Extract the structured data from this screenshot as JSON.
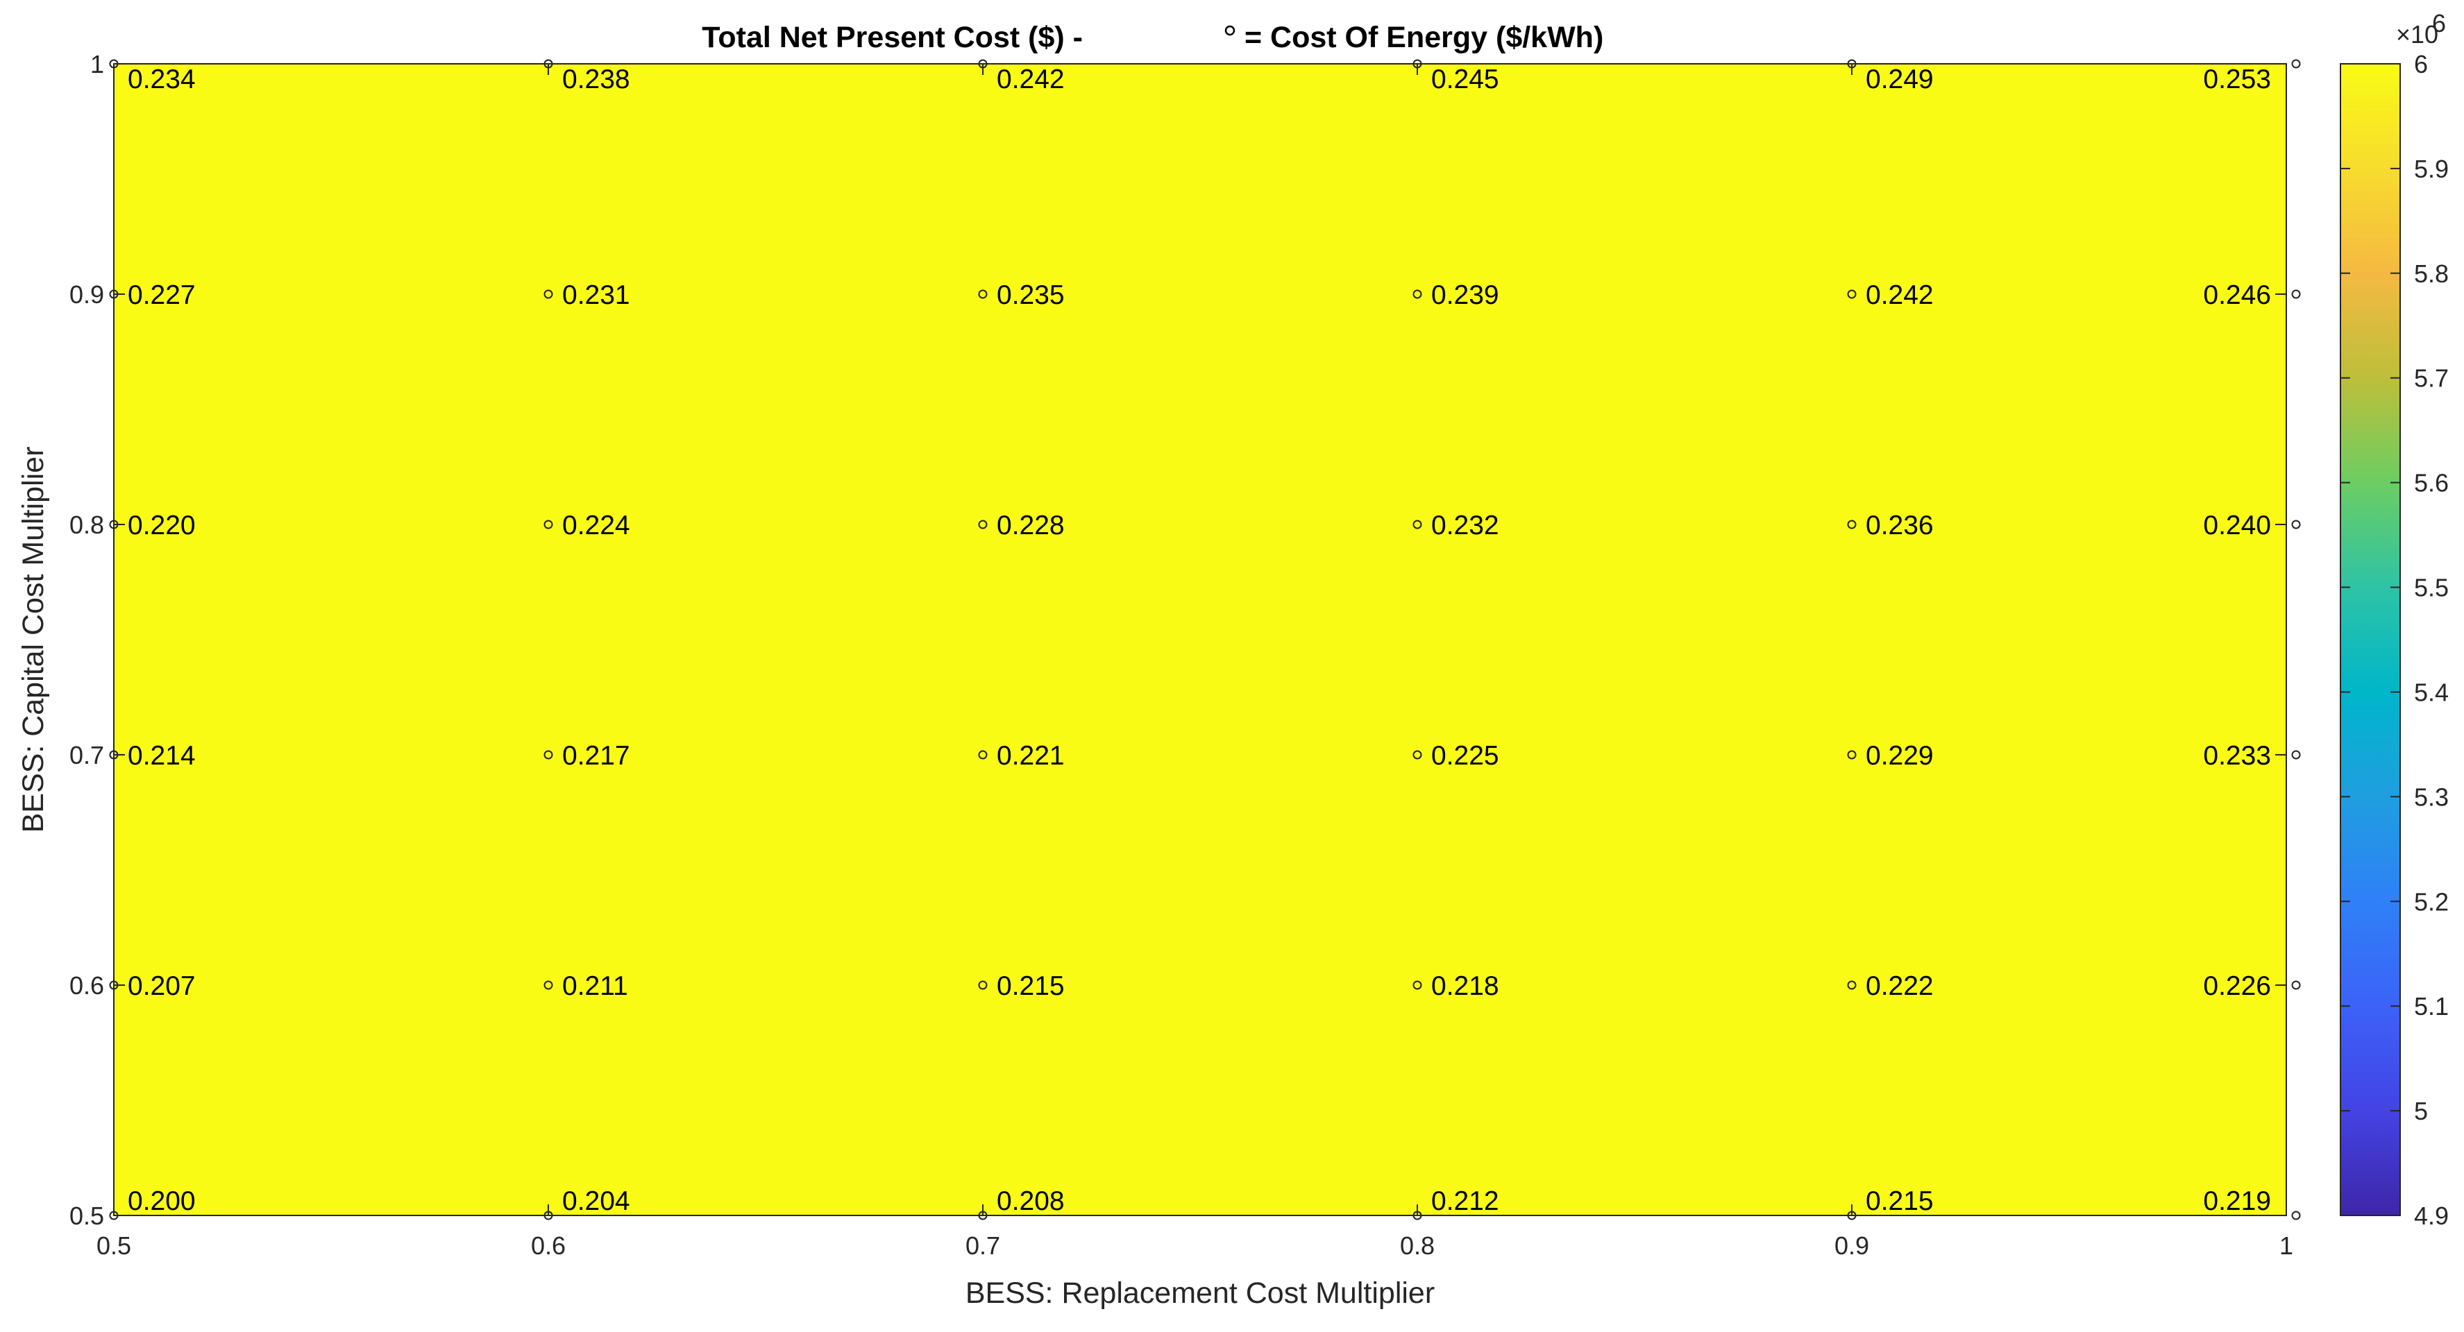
{
  "chart_data": {
    "type": "contour",
    "title_left": "Total Net Present Cost ($)  -",
    "title_right": "=  Cost Of Energy ($/kWh)",
    "xlabel": "BESS: Replacement Cost Multiplier",
    "ylabel": "BESS: Capital Cost Multiplier",
    "x": [
      0.5,
      0.6,
      0.7,
      0.8,
      0.9,
      1.0
    ],
    "y": [
      0.5,
      0.6,
      0.7,
      0.8,
      0.9,
      1.0
    ],
    "xlim": [
      0.5,
      1.0
    ],
    "ylim": [
      0.5,
      1.0
    ],
    "xticks": [
      "0.5",
      "0.6",
      "0.7",
      "0.8",
      "0.9",
      "1"
    ],
    "yticks": [
      "0.5",
      "0.6",
      "0.7",
      "0.8",
      "0.9",
      "1"
    ],
    "npc_model": {
      "base": 4.8,
      "per_x": 1.0,
      "per_y": 2.0,
      "unit_exponent": 6
    },
    "levels": [
      4.9,
      5.0,
      5.2,
      5.4,
      5.6,
      5.8,
      6.0
    ],
    "level_colors": [
      "#3e26a8",
      "#4443e4",
      "#2f80f7",
      "#00b6c9",
      "#6ccd63",
      "#f5b942",
      "#f9fb15"
    ],
    "coe_grid": [
      [
        "0.200",
        "0.204",
        "0.208",
        "0.212",
        "0.215",
        "0.219"
      ],
      [
        "0.207",
        "0.211",
        "0.215",
        "0.218",
        "0.222",
        "0.226"
      ],
      [
        "0.214",
        "0.217",
        "0.221",
        "0.225",
        "0.229",
        "0.233"
      ],
      [
        "0.220",
        "0.224",
        "0.228",
        "0.232",
        "0.236",
        "0.240"
      ],
      [
        "0.227",
        "0.231",
        "0.235",
        "0.239",
        "0.242",
        "0.246"
      ],
      [
        "0.234",
        "0.238",
        "0.242",
        "0.245",
        "0.249",
        "0.253"
      ]
    ],
    "colorbar": {
      "min": 4.9,
      "max": 6.0,
      "ticks": [
        "4.9",
        "5",
        "5.1",
        "5.2",
        "5.3",
        "5.4",
        "5.5",
        "5.6",
        "5.7",
        "5.8",
        "5.9",
        "6"
      ],
      "exponent_base": "×10",
      "exponent_power": "6",
      "stops": [
        [
          4.9,
          "#3e26a8"
        ],
        [
          5.0,
          "#4443e4"
        ],
        [
          5.1,
          "#3c62f7"
        ],
        [
          5.2,
          "#2f80f7"
        ],
        [
          5.3,
          "#1f9ee0"
        ],
        [
          5.4,
          "#00b6c9"
        ],
        [
          5.5,
          "#2ec3a6"
        ],
        [
          5.6,
          "#6ccd63"
        ],
        [
          5.7,
          "#bdbf3a"
        ],
        [
          5.8,
          "#f5b942"
        ],
        [
          5.9,
          "#f7dc2e"
        ],
        [
          6.0,
          "#f9fb15"
        ]
      ]
    }
  }
}
